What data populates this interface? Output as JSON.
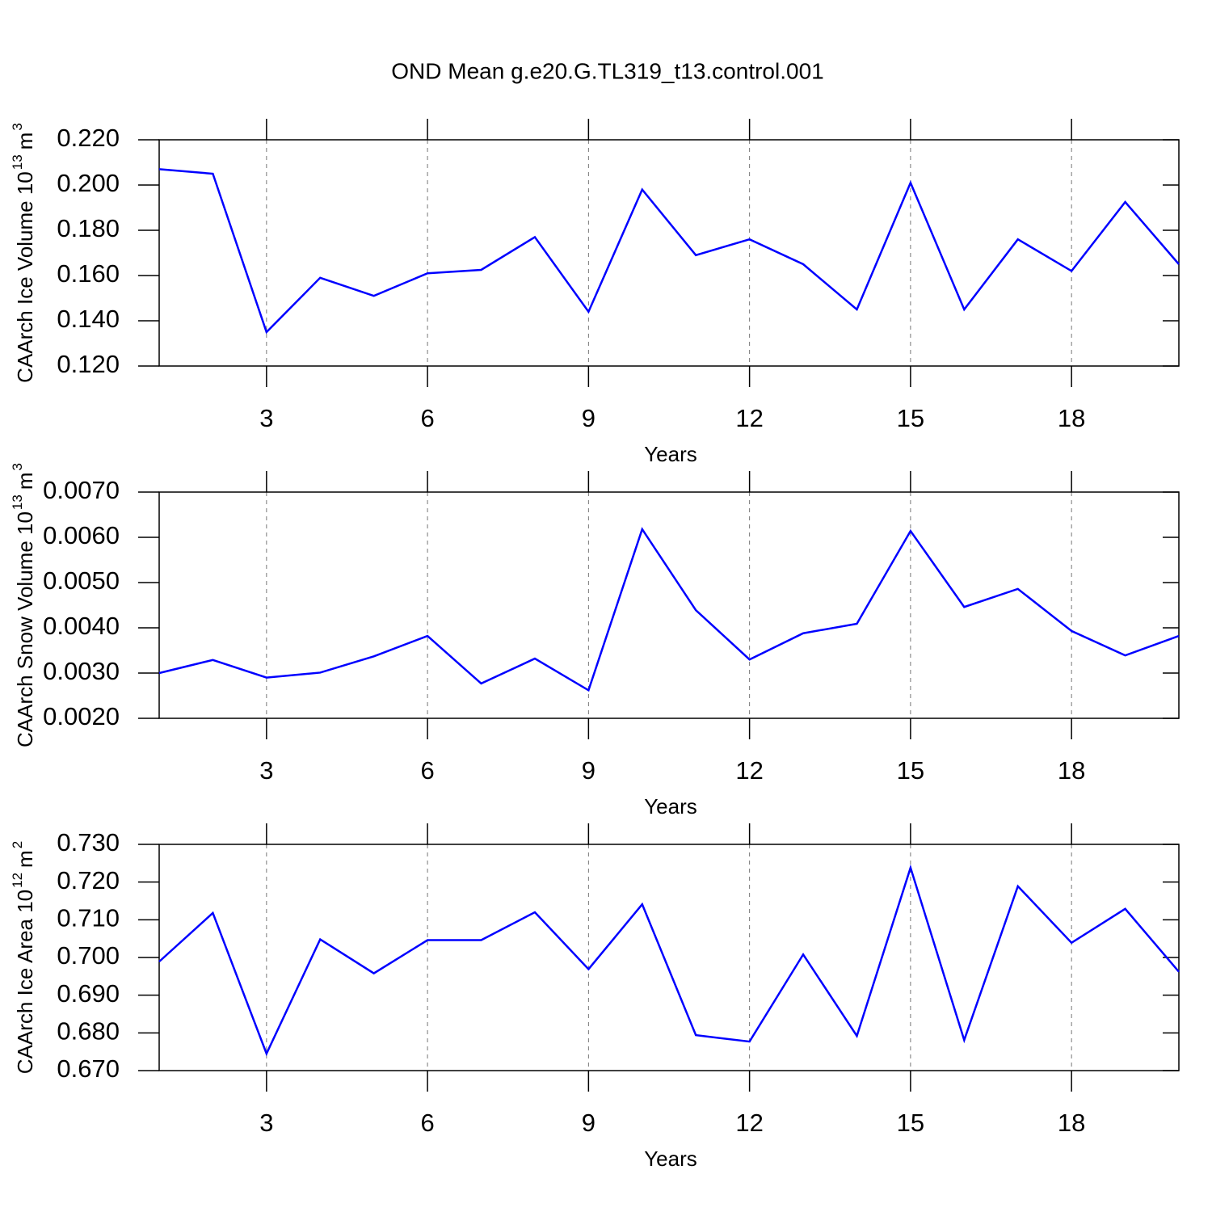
{
  "title": "OND Mean g.e20.G.TL319_t13.control.001",
  "chart_data": [
    {
      "type": "line",
      "ylabel": [
        "CAArch Ice Volume 10",
        "13",
        "m",
        "3"
      ],
      "xlabel": "Years",
      "x": [
        1,
        2,
        3,
        4,
        5,
        6,
        7,
        8,
        9,
        10,
        11,
        12,
        13,
        14,
        15,
        16,
        17,
        18,
        19,
        20
      ],
      "series": [
        {
          "color": "#0000ff",
          "values": [
            0.207,
            0.205,
            0.135,
            0.159,
            0.151,
            0.161,
            0.1625,
            0.177,
            0.144,
            0.198,
            0.169,
            0.176,
            0.165,
            0.145,
            0.201,
            0.145,
            0.176,
            0.162,
            0.1925,
            0.165
          ]
        }
      ],
      "xlim": [
        1,
        20
      ],
      "ylim": [
        0.12,
        0.22
      ],
      "xticks": [
        3,
        6,
        9,
        12,
        15,
        18
      ],
      "yticks": [
        {
          "value": 0.12,
          "label": "0.120"
        },
        {
          "value": 0.14,
          "label": "0.140"
        },
        {
          "value": 0.16,
          "label": "0.160"
        },
        {
          "value": 0.18,
          "label": "0.180"
        },
        {
          "value": 0.2,
          "label": "0.200"
        },
        {
          "value": 0.22,
          "label": "0.220"
        }
      ],
      "grid": true
    },
    {
      "type": "line",
      "ylabel": [
        "CAArch Snow Volume 10",
        "13",
        "m",
        "3"
      ],
      "xlabel": "Years",
      "x": [
        1,
        2,
        3,
        4,
        5,
        6,
        7,
        8,
        9,
        10,
        11,
        12,
        13,
        14,
        15,
        16,
        17,
        18,
        19,
        20
      ],
      "series": [
        {
          "color": "#0000ff",
          "values": [
            0.003,
            0.00329,
            0.0029,
            0.00301,
            0.00337,
            0.00382,
            0.00277,
            0.00332,
            0.00262,
            0.00618,
            0.00439,
            0.0033,
            0.00388,
            0.00409,
            0.00614,
            0.00446,
            0.00486,
            0.00393,
            0.00339,
            0.00382
          ]
        }
      ],
      "xlim": [
        1,
        20
      ],
      "ylim": [
        0.002,
        0.007
      ],
      "xticks": [
        3,
        6,
        9,
        12,
        15,
        18
      ],
      "yticks": [
        {
          "value": 0.002,
          "label": "0.0020"
        },
        {
          "value": 0.003,
          "label": "0.0030"
        },
        {
          "value": 0.004,
          "label": "0.0040"
        },
        {
          "value": 0.005,
          "label": "0.0050"
        },
        {
          "value": 0.006,
          "label": "0.0060"
        },
        {
          "value": 0.007,
          "label": "0.0070"
        }
      ],
      "grid": true
    },
    {
      "type": "line",
      "ylabel": [
        "CAArch Ice Area 10",
        "12",
        "m",
        "2"
      ],
      "xlabel": "Years",
      "x": [
        1,
        2,
        3,
        4,
        5,
        6,
        7,
        8,
        9,
        10,
        11,
        12,
        13,
        14,
        15,
        16,
        17,
        18,
        19,
        20
      ],
      "series": [
        {
          "color": "#0000ff",
          "values": [
            0.6989,
            0.7118,
            0.6745,
            0.7048,
            0.6958,
            0.7046,
            0.7046,
            0.712,
            0.6969,
            0.7141,
            0.6794,
            0.6777,
            0.7008,
            0.6792,
            0.7238,
            0.6781,
            0.7189,
            0.7039,
            0.7129,
            0.6962
          ]
        }
      ],
      "xlim": [
        1,
        20
      ],
      "ylim": [
        0.67,
        0.73
      ],
      "xticks": [
        3,
        6,
        9,
        12,
        15,
        18
      ],
      "yticks": [
        {
          "value": 0.67,
          "label": "0.670"
        },
        {
          "value": 0.68,
          "label": "0.680"
        },
        {
          "value": 0.69,
          "label": "0.690"
        },
        {
          "value": 0.7,
          "label": "0.700"
        },
        {
          "value": 0.71,
          "label": "0.710"
        },
        {
          "value": 0.72,
          "label": "0.720"
        },
        {
          "value": 0.73,
          "label": "0.730"
        }
      ],
      "grid": true
    }
  ]
}
